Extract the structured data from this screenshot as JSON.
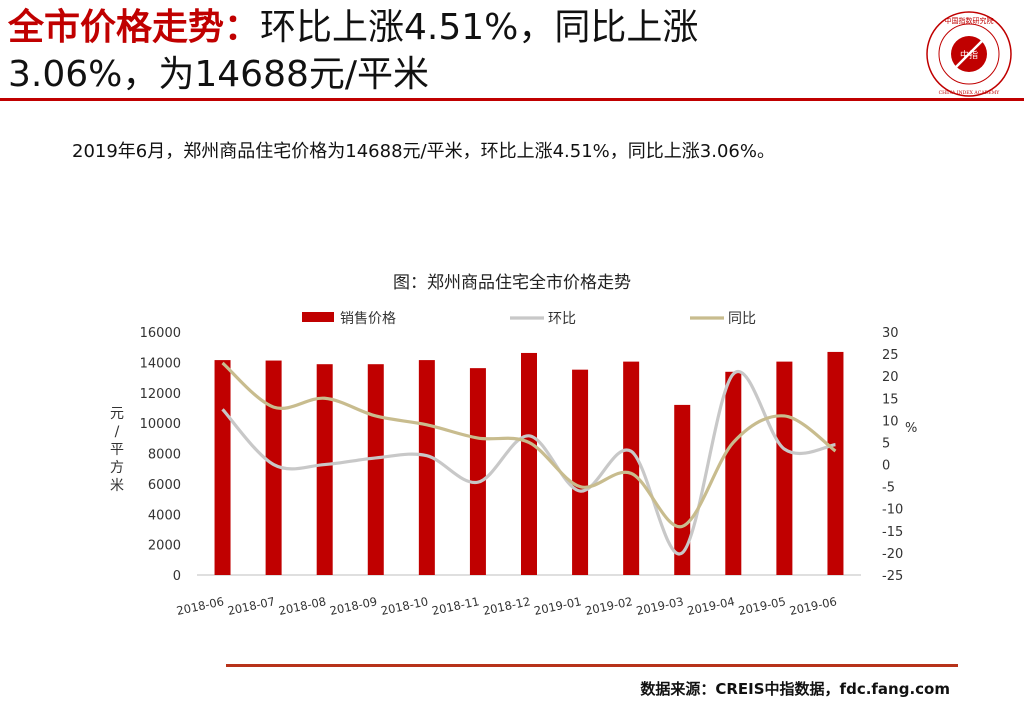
{
  "header": {
    "title_highlight": "全市价格走势：",
    "title_line1_rest": "环比上涨4.51%，同比上涨",
    "title_line2": "3.06%，为14688元/平米",
    "logo_text": "中国指数研究院",
    "logo_chars": "中指",
    "logo_en": "CHINA INDEX ACADEMY",
    "accent_color": "#c00000"
  },
  "summary": "2019年6月，郑州商品住宅价格为14688元/平米，环比上涨4.51%，同比上涨3.06%。",
  "source": "数据来源：CREIS中指数据，fdc.fang.com",
  "chart_data": {
    "type": "bar",
    "title": "图：郑州商品住宅全市价格走势",
    "categories": [
      "2018-06",
      "2018-07",
      "2018-08",
      "2018-09",
      "2018-10",
      "2018-11",
      "2018-12",
      "2019-01",
      "2019-02",
      "2019-03",
      "2019-04",
      "2019-05",
      "2019-06"
    ],
    "ylabel": "元/平方米",
    "ylabel_right": "%",
    "ylim": [
      0,
      16000
    ],
    "yticks": [
      "0",
      "2000",
      "4000",
      "6000",
      "8000",
      "10000",
      "12000",
      "14000",
      "16000"
    ],
    "ylim_right": [
      -25,
      30
    ],
    "yticks_right": [
      "-25",
      "-20",
      "-15",
      "-10",
      "-5",
      "0",
      "5",
      "10",
      "15",
      "20",
      "25",
      "30"
    ],
    "legend_position": "top",
    "series": [
      {
        "name": "销售价格",
        "type": "bar",
        "axis": "left",
        "color": "#c00000",
        "values": [
          14150,
          14120,
          13880,
          13880,
          14150,
          13620,
          14620,
          13520,
          14050,
          11200,
          13380,
          14050,
          14688
        ]
      },
      {
        "name": "环比",
        "type": "line",
        "axis": "right",
        "color": "#c8c8c8",
        "values": [
          12.5,
          0,
          0,
          1.5,
          2,
          -4,
          6.5,
          -6,
          3,
          -20,
          20.5,
          3.5,
          4.51
        ]
      },
      {
        "name": "同比",
        "type": "line",
        "axis": "right",
        "color": "#c8bc8e",
        "values": [
          23,
          13,
          15,
          11,
          9,
          6,
          5,
          -5,
          -2,
          -14,
          5,
          11,
          3.06
        ]
      }
    ]
  }
}
